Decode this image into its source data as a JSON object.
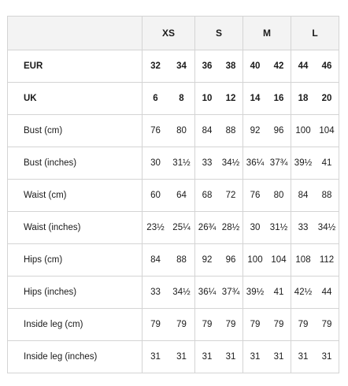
{
  "table": {
    "corner": "",
    "columns": [
      "XS",
      "S",
      "M",
      "L"
    ],
    "rows": [
      {
        "label": "EUR",
        "bold": true,
        "values": [
          [
            "32",
            "34"
          ],
          [
            "36",
            "38"
          ],
          [
            "40",
            "42"
          ],
          [
            "44",
            "46"
          ]
        ]
      },
      {
        "label": "UK",
        "bold": true,
        "values": [
          [
            "6",
            "8"
          ],
          [
            "10",
            "12"
          ],
          [
            "14",
            "16"
          ],
          [
            "18",
            "20"
          ]
        ]
      },
      {
        "label": "Bust (cm)",
        "bold": false,
        "values": [
          [
            "76",
            "80"
          ],
          [
            "84",
            "88"
          ],
          [
            "92",
            "96"
          ],
          [
            "100",
            "104"
          ]
        ]
      },
      {
        "label": "Bust (inches)",
        "bold": false,
        "values": [
          [
            "30",
            "31½"
          ],
          [
            "33",
            "34½"
          ],
          [
            "36¼",
            "37¾"
          ],
          [
            "39½",
            "41"
          ]
        ]
      },
      {
        "label": "Waist (cm)",
        "bold": false,
        "values": [
          [
            "60",
            "64"
          ],
          [
            "68",
            "72"
          ],
          [
            "76",
            "80"
          ],
          [
            "84",
            "88"
          ]
        ]
      },
      {
        "label": "Waist (inches)",
        "bold": false,
        "values": [
          [
            "23½",
            "25¼"
          ],
          [
            "26¾",
            "28½"
          ],
          [
            "30",
            "31½"
          ],
          [
            "33",
            "34½"
          ]
        ]
      },
      {
        "label": "Hips (cm)",
        "bold": false,
        "values": [
          [
            "84",
            "88"
          ],
          [
            "92",
            "96"
          ],
          [
            "100",
            "104"
          ],
          [
            "108",
            "112"
          ]
        ]
      },
      {
        "label": "Hips (inches)",
        "bold": false,
        "values": [
          [
            "33",
            "34½"
          ],
          [
            "36¼",
            "37¾"
          ],
          [
            "39½",
            "41"
          ],
          [
            "42½",
            "44"
          ]
        ]
      },
      {
        "label": "Inside leg (cm)",
        "bold": false,
        "values": [
          [
            "79",
            "79"
          ],
          [
            "79",
            "79"
          ],
          [
            "79",
            "79"
          ],
          [
            "79",
            "79"
          ]
        ]
      },
      {
        "label": "Inside leg (inches)",
        "bold": false,
        "values": [
          [
            "31",
            "31"
          ],
          [
            "31",
            "31"
          ],
          [
            "31",
            "31"
          ],
          [
            "31",
            "31"
          ]
        ]
      }
    ]
  }
}
